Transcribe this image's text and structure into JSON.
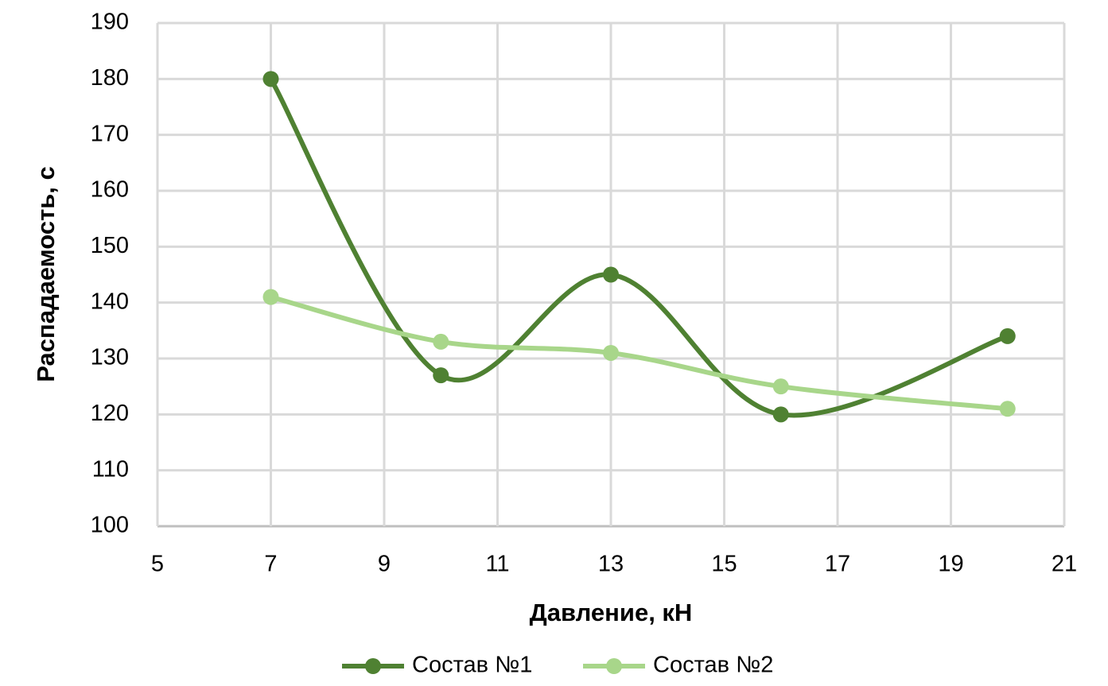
{
  "chart_data": {
    "type": "line",
    "smooth": true,
    "x_label": "Давление, кН",
    "y_label": "Распадаемость, с",
    "x": [
      7,
      10,
      13,
      16,
      20
    ],
    "series": [
      {
        "name": "Состав №1",
        "color": "#4f8132",
        "values": [
          180,
          127,
          145,
          120,
          134
        ]
      },
      {
        "name": "Состав №2",
        "color": "#a8d68a",
        "values": [
          141,
          133,
          131,
          125,
          121
        ]
      }
    ],
    "xlim": [
      5,
      21
    ],
    "xticks": [
      5,
      7,
      9,
      11,
      13,
      15,
      17,
      19,
      21
    ],
    "ylim": [
      100,
      190
    ],
    "yticks": [
      100,
      110,
      120,
      130,
      140,
      150,
      160,
      170,
      180,
      190
    ],
    "grid": true,
    "legend": "bottom"
  }
}
